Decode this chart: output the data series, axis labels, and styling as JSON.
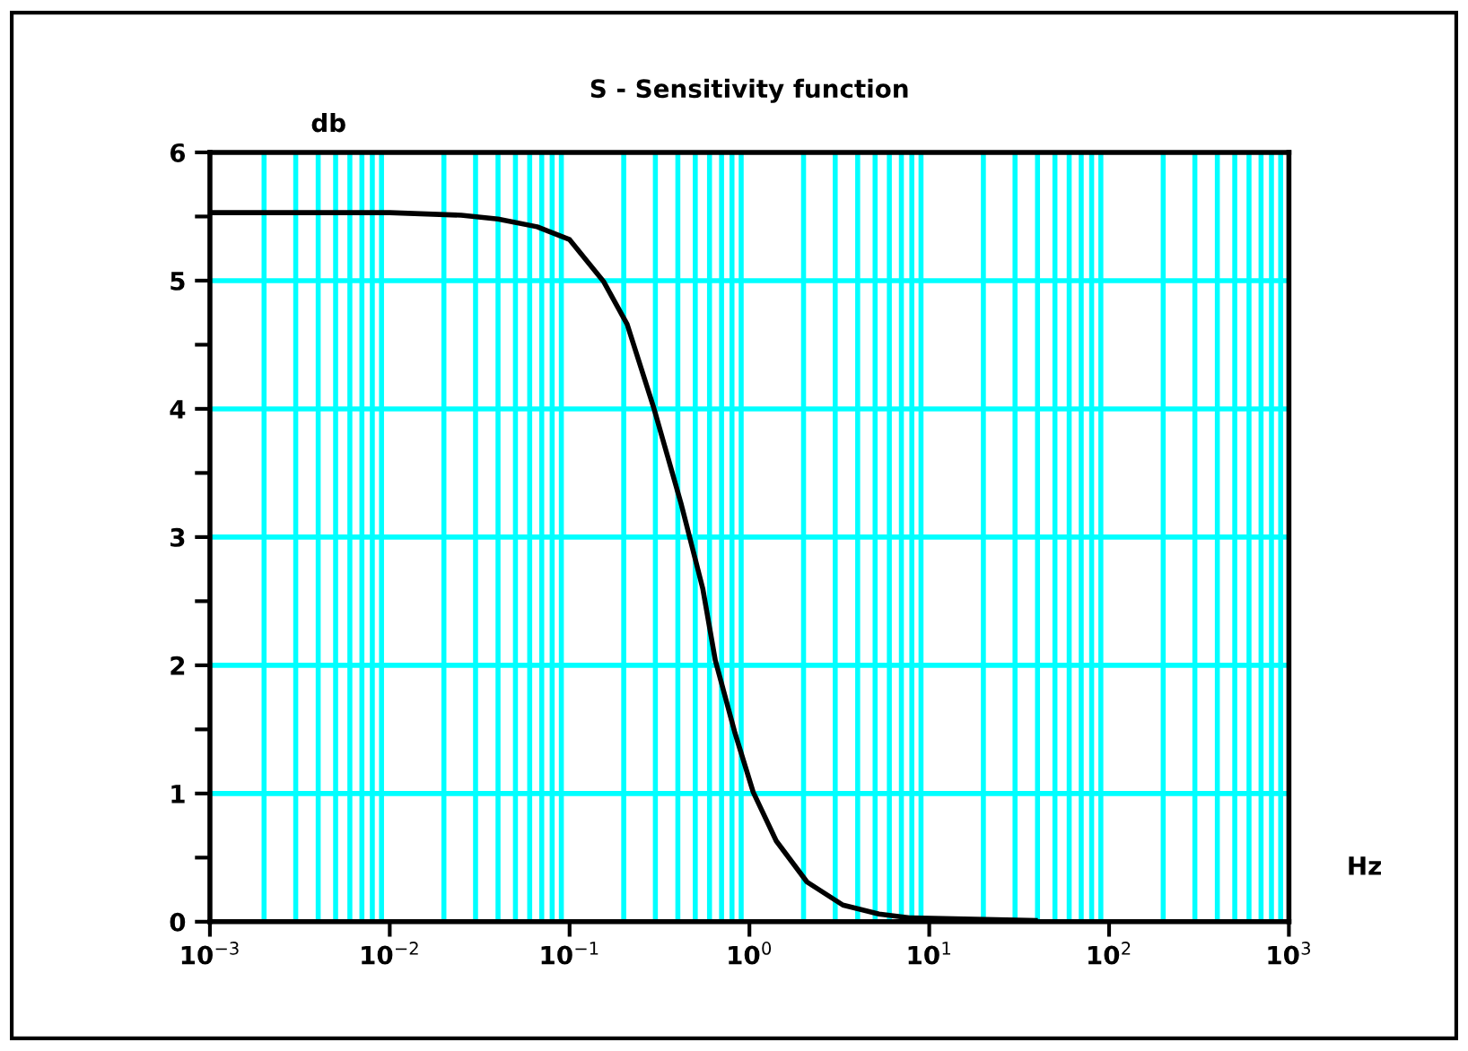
{
  "chart_data": {
    "type": "line",
    "title": "S - Sensitivity function",
    "xlabel": "Hz",
    "ylabel": "db",
    "log": "x",
    "grid": true,
    "marker": "none",
    "line_style": "solid",
    "x": [
      0.001,
      0.01,
      0.025,
      0.04,
      0.066,
      0.1,
      0.155,
      0.209,
      0.295,
      0.417,
      0.55,
      0.646,
      0.832,
      1.05,
      1.41,
      2.09,
      3.31,
      5.25,
      7.76,
      38.9
    ],
    "series": [
      {
        "color": "#000000",
        "values": [
          5.53,
          5.53,
          5.51,
          5.48,
          5.42,
          5.32,
          4.99,
          4.66,
          4.0,
          3.26,
          2.6,
          2.04,
          1.47,
          1.01,
          0.63,
          0.31,
          0.13,
          0.06,
          0.03,
          0.01
        ]
      }
    ],
    "xlim": [
      0.001,
      1000
    ],
    "ylim": [
      0,
      6
    ],
    "xticks": [
      {
        "value": 0.001,
        "label": "10$^{−3}$"
      },
      {
        "value": 0.01,
        "label": "10$^{−2}$"
      },
      {
        "value": 0.1,
        "label": "10$^{−1}$"
      },
      {
        "value": 1,
        "label": "10$^{0}$"
      },
      {
        "value": 10,
        "label": "10$^{1}$"
      },
      {
        "value": 100,
        "label": "10$^{2}$"
      },
      {
        "value": 1000,
        "label": "10$^{3}$"
      }
    ],
    "yticks": [
      0,
      {
        "value": 0.5,
        "label": null
      },
      1,
      {
        "value": 1.5,
        "label": null
      },
      2,
      {
        "value": 2.5,
        "label": null
      },
      3,
      {
        "value": 3.5,
        "label": null
      },
      4,
      {
        "value": 4.5,
        "label": null
      },
      5,
      {
        "value": 5.5,
        "label": null
      },
      6
    ]
  }
}
